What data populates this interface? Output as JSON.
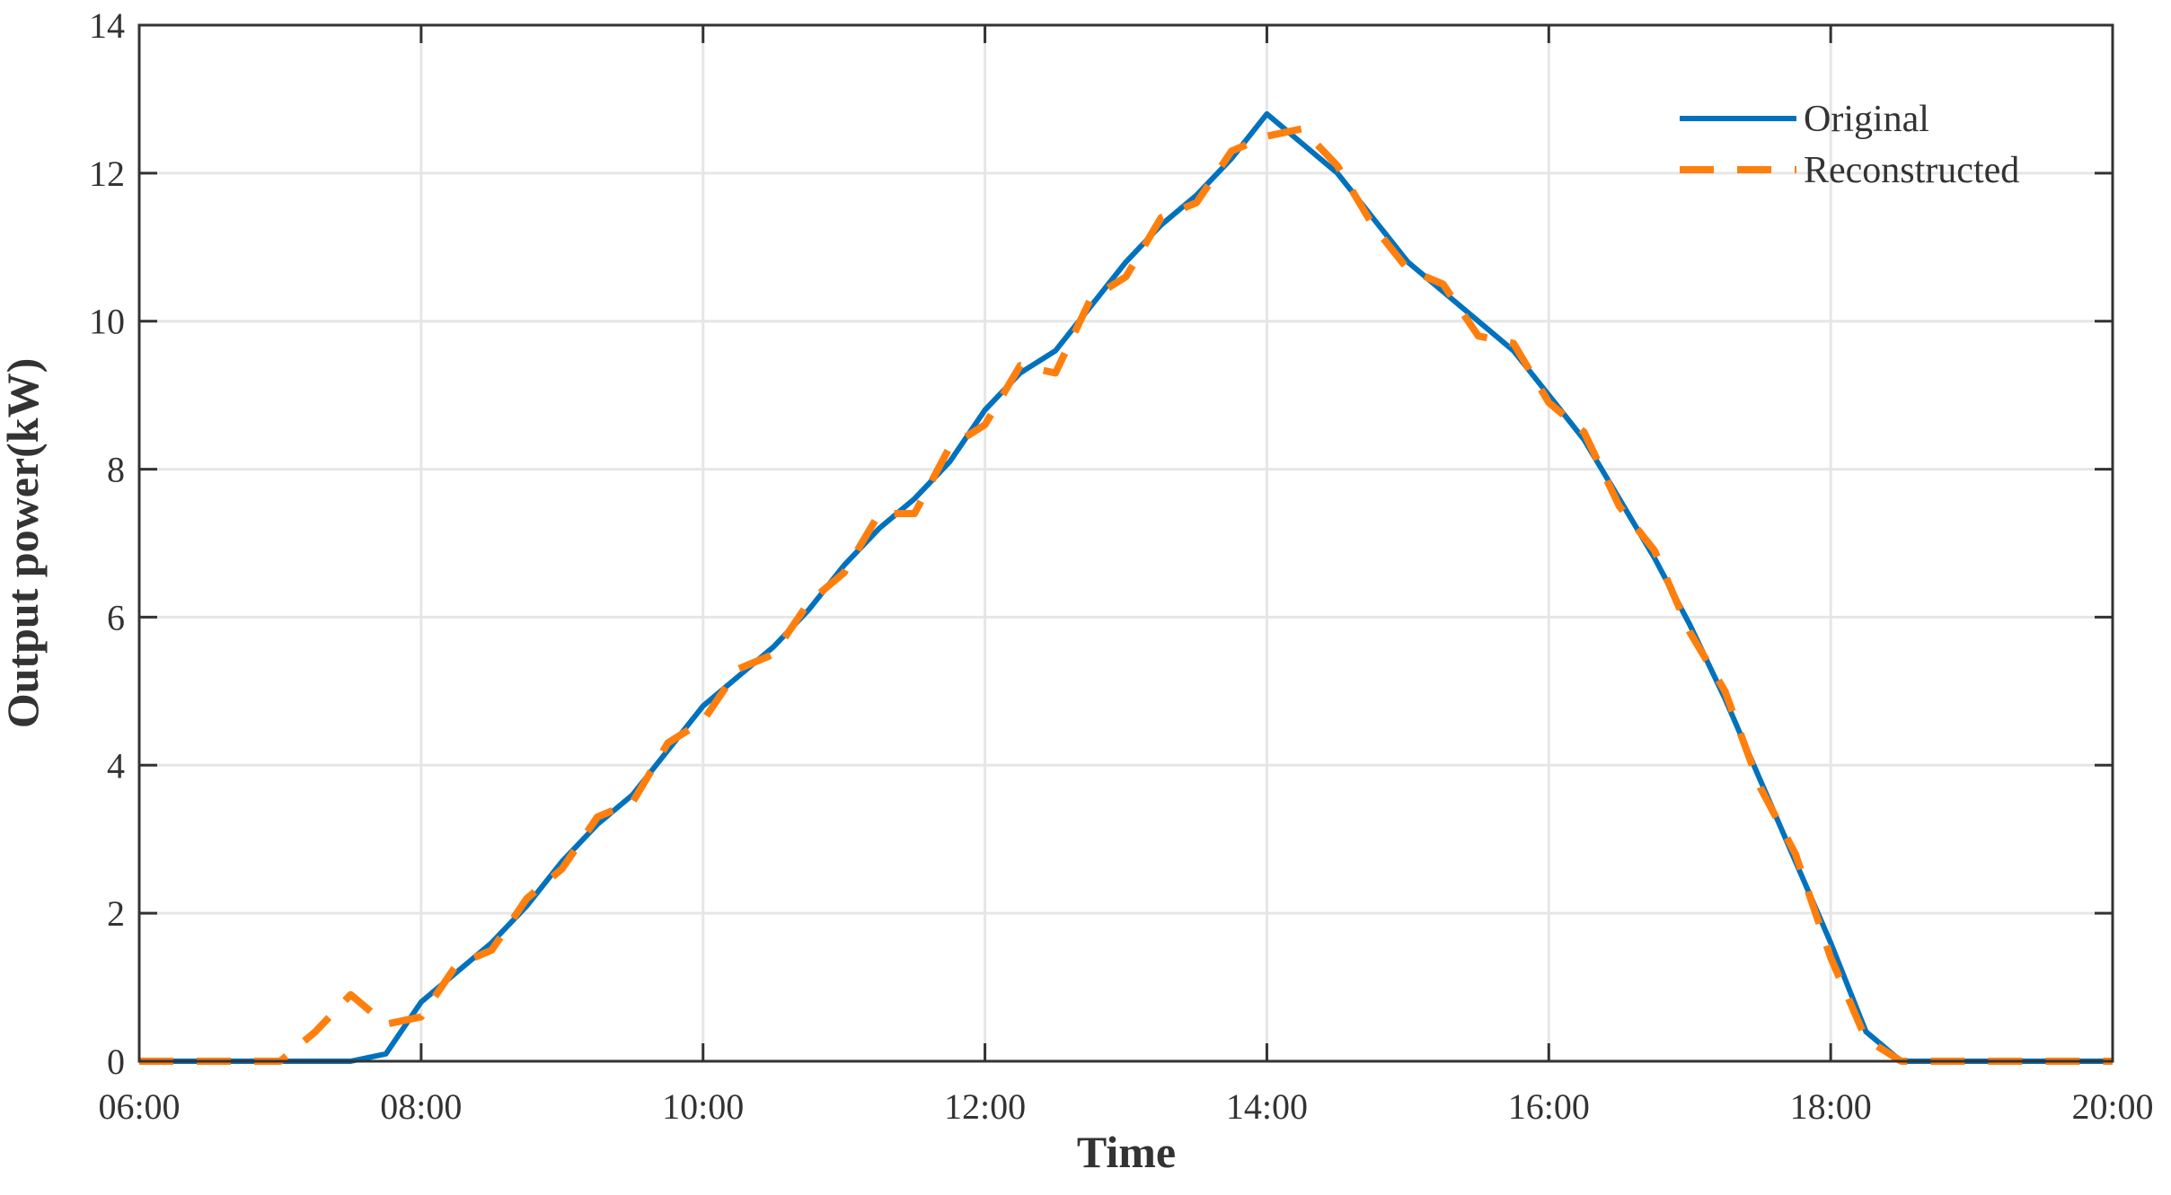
{
  "chart_data": {
    "type": "line",
    "x_label": "Time",
    "y_label": "Output power(kW)",
    "x": [
      6,
      6.25,
      6.5,
      6.75,
      7,
      7.25,
      7.5,
      7.75,
      8,
      8.25,
      8.5,
      8.75,
      9,
      9.25,
      9.5,
      9.75,
      10,
      10.25,
      10.5,
      10.75,
      11,
      11.25,
      11.5,
      11.75,
      12,
      12.25,
      12.5,
      12.75,
      13,
      13.25,
      13.5,
      13.75,
      14,
      14.25,
      14.5,
      14.75,
      15,
      15.25,
      15.5,
      15.75,
      16,
      16.25,
      16.5,
      16.75,
      17,
      17.25,
      17.5,
      17.75,
      18,
      18.25,
      18.5,
      18.75,
      19,
      19.25,
      19.5,
      19.75,
      20
    ],
    "series": [
      {
        "name": "Original",
        "color": "#0072bd",
        "dash": false,
        "values": [
          0,
          0,
          0,
          0,
          0,
          0,
          0,
          0.1,
          0.8,
          1.2,
          1.6,
          2.1,
          2.7,
          3.2,
          3.6,
          4.2,
          4.8,
          5.2,
          5.6,
          6.1,
          6.7,
          7.2,
          7.6,
          8.1,
          8.8,
          9.3,
          9.6,
          10.2,
          10.8,
          11.3,
          11.7,
          12.2,
          12.8,
          12.4,
          12.0,
          11.4,
          10.8,
          10.4,
          10.0,
          9.6,
          9.0,
          8.4,
          7.6,
          6.8,
          5.9,
          4.9,
          3.8,
          2.7,
          1.6,
          0.4,
          0,
          0,
          0,
          0,
          0,
          0,
          0
        ]
      },
      {
        "name": "Reconstructed",
        "color": "#ff7f0e",
        "dash": true,
        "values": [
          0,
          0,
          0,
          0,
          0,
          0.4,
          0.9,
          0.5,
          0.6,
          1.3,
          1.5,
          2.2,
          2.6,
          3.3,
          3.5,
          4.3,
          4.6,
          5.3,
          5.5,
          6.2,
          6.6,
          7.4,
          7.4,
          8.3,
          8.6,
          9.4,
          9.3,
          10.3,
          10.6,
          11.4,
          11.6,
          12.3,
          12.5,
          12.6,
          12.1,
          11.3,
          10.7,
          10.5,
          9.8,
          9.7,
          8.9,
          8.5,
          7.5,
          6.9,
          5.8,
          5.0,
          3.7,
          2.8,
          1.4,
          0.3,
          0,
          0,
          0,
          0,
          0,
          0,
          0
        ]
      }
    ],
    "xlim": [
      6,
      20
    ],
    "xticks": [
      {
        "value": 6,
        "label": "06:00"
      },
      {
        "value": 8,
        "label": "08:00"
      },
      {
        "value": 10,
        "label": "10:00"
      },
      {
        "value": 12,
        "label": "12:00"
      },
      {
        "value": 14,
        "label": "14:00"
      },
      {
        "value": 16,
        "label": "16:00"
      },
      {
        "value": 18,
        "label": "18:00"
      },
      {
        "value": 20,
        "label": "20:00"
      }
    ],
    "ylim": [
      0,
      14
    ],
    "yticks": [
      0,
      2,
      4,
      6,
      8,
      10,
      12,
      14
    ],
    "grid": true,
    "legend": "upper right"
  }
}
